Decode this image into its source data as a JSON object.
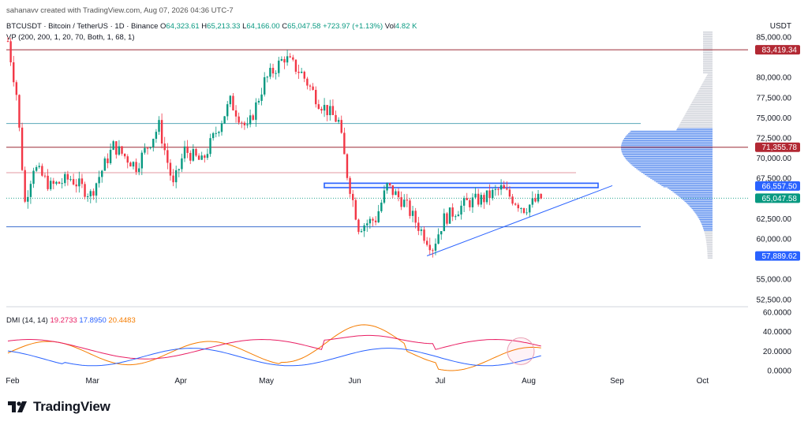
{
  "watermark": "sahanavv created with TradingView.com, Aug 07, 2026 04:36 UTC-7",
  "symbol": {
    "name": "BTCUSDT · Bitcoin / TetherUS · 1D · Binance",
    "o_label": "O",
    "o": "64,323.61",
    "h_label": "H",
    "h": "65,213.33",
    "l_label": "L",
    "l": "64,166.00",
    "c_label": "C",
    "c": "65,047.58",
    "change": "+723.97 (+1.13%)",
    "vol_label": "Vol",
    "vol": "4.82 K"
  },
  "vp_label": "VP (200, 200, 1, 20, 70, Both, 1, 68, 1)",
  "currency": "USDT",
  "price_axis": [
    "85,000.00",
    "80,000.00",
    "77,500.00",
    "75,000.00",
    "72,500.00",
    "70,000.00",
    "67,500.00",
    "62,500.00",
    "60,000.00",
    "55,000.00",
    "52,500.00"
  ],
  "price_tags": [
    {
      "value": "83,419.34",
      "color": "#b22833"
    },
    {
      "value": "71,355.78",
      "color": "#b22833"
    },
    {
      "value": "66,557.50",
      "color": "#2962ff"
    },
    {
      "value": "65,047.58",
      "color": "#089981"
    },
    {
      "value": "57,889.62",
      "color": "#2962ff"
    }
  ],
  "months": [
    "Feb",
    "Mar",
    "Apr",
    "May",
    "Jun",
    "Jul",
    "Aug",
    "Sep",
    "Oct"
  ],
  "dmi": {
    "label": "DMI (14, 14)",
    "plus_di": "19.2733",
    "minus_di": "17.8950",
    "adx": "20.4483",
    "axis": [
      "60.0000",
      "40.0000",
      "20.0000",
      "0.0000"
    ],
    "colors": {
      "plus_di": "#e91e63",
      "minus_di": "#2962ff",
      "adx": "#f57c00"
    }
  },
  "brand": "TradingView",
  "chart_data": {
    "type": "candlestick",
    "x_axis": "date",
    "ylim": [
      51000,
      86500
    ],
    "series": [
      {
        "name": "BTCUSDT",
        "last_close": 65047.58
      }
    ],
    "path_points": [
      [
        "2026-02-01",
        84500
      ],
      [
        "2026-02-04",
        78000
      ],
      [
        "2026-02-07",
        64500
      ],
      [
        "2026-02-10",
        69000
      ],
      [
        "2026-02-16",
        66500
      ],
      [
        "2026-02-23",
        67500
      ],
      [
        "2026-03-02",
        65500
      ],
      [
        "2026-03-10",
        71500
      ],
      [
        "2026-03-18",
        69000
      ],
      [
        "2026-03-26",
        74000
      ],
      [
        "2026-03-31",
        66500
      ],
      [
        "2026-04-04",
        71000
      ],
      [
        "2026-04-10",
        69500
      ],
      [
        "2026-04-20",
        77000
      ],
      [
        "2026-04-26",
        73500
      ],
      [
        "2026-05-02",
        79500
      ],
      [
        "2026-05-09",
        82500
      ],
      [
        "2026-05-15",
        80500
      ],
      [
        "2026-05-21",
        77000
      ],
      [
        "2026-05-28",
        74500
      ],
      [
        "2026-05-31",
        68000
      ],
      [
        "2026-06-04",
        61500
      ],
      [
        "2026-06-10",
        62500
      ],
      [
        "2026-06-14",
        66500
      ],
      [
        "2026-06-20",
        64500
      ],
      [
        "2026-06-26",
        61000
      ],
      [
        "2026-06-30",
        59000
      ],
      [
        "2026-07-04",
        62500
      ],
      [
        "2026-07-12",
        64500
      ],
      [
        "2026-07-18",
        65000
      ],
      [
        "2026-07-24",
        66200
      ],
      [
        "2026-08-01",
        63800
      ],
      [
        "2026-08-07",
        65047.58
      ]
    ],
    "horizontal_levels": [
      83419.34,
      74300,
      71355.78,
      68200,
      61500
    ],
    "resistance_zone": [
      66350,
      66900
    ],
    "ascending_trendline": [
      [
        "2026-06-28",
        57900
      ],
      [
        "2026-09-01",
        66600
      ]
    ],
    "indicator": {
      "name": "DMI (14, 14)",
      "ylim": [
        0,
        60
      ],
      "series": [
        {
          "name": "+DI",
          "last": 19.2733
        },
        {
          "name": "-DI",
          "last": 17.895
        },
        {
          "name": "ADX",
          "last": 20.4483
        }
      ]
    }
  }
}
